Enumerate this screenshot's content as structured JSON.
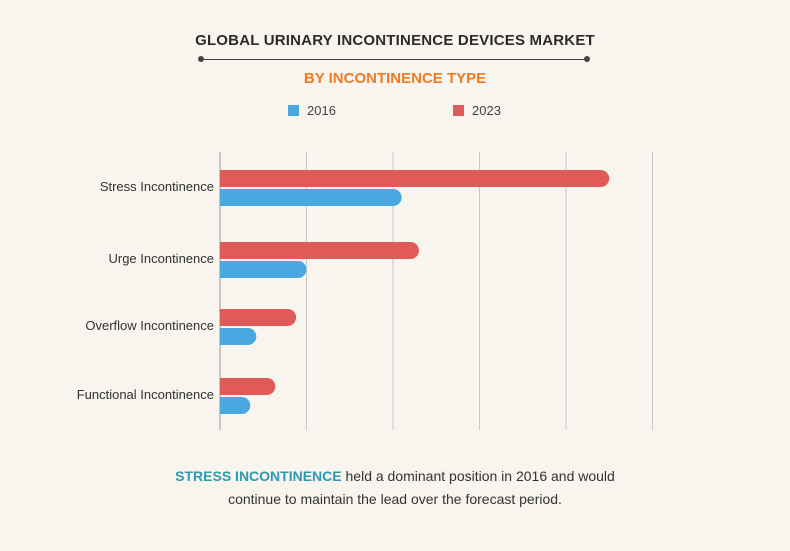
{
  "header": {
    "title": "GLOBAL URINARY INCONTINENCE DEVICES MARKET",
    "subtitle": "BY INCONTINENCE TYPE"
  },
  "colors": {
    "accent_orange": "#f07a23",
    "series_2016": "#4aa8e0",
    "series_2023": "#e05a5a",
    "highlight_teal": "#2a9bb0",
    "grid": "#c8c8c8"
  },
  "footer": {
    "highlight": "STRESS INCONTINENCE",
    "line1_rest": " held a dominant position in 2016 and would",
    "line2": "continue to maintain the lead over the forecast period."
  },
  "chart_data": {
    "type": "bar",
    "orientation": "horizontal",
    "categories": [
      "Stress Incontinence",
      "Urge Incontinence",
      "Overflow Incontinence",
      "Functional Incontinence"
    ],
    "series": [
      {
        "name": "2016",
        "color": "#4aa8e0",
        "values": [
          2.1,
          1.0,
          0.42,
          0.35
        ]
      },
      {
        "name": "2023",
        "color": "#e05a5a",
        "values": [
          4.5,
          2.3,
          0.88,
          0.64
        ]
      }
    ],
    "xlim": [
      0,
      5
    ],
    "grid": true,
    "legend_position": "top"
  }
}
